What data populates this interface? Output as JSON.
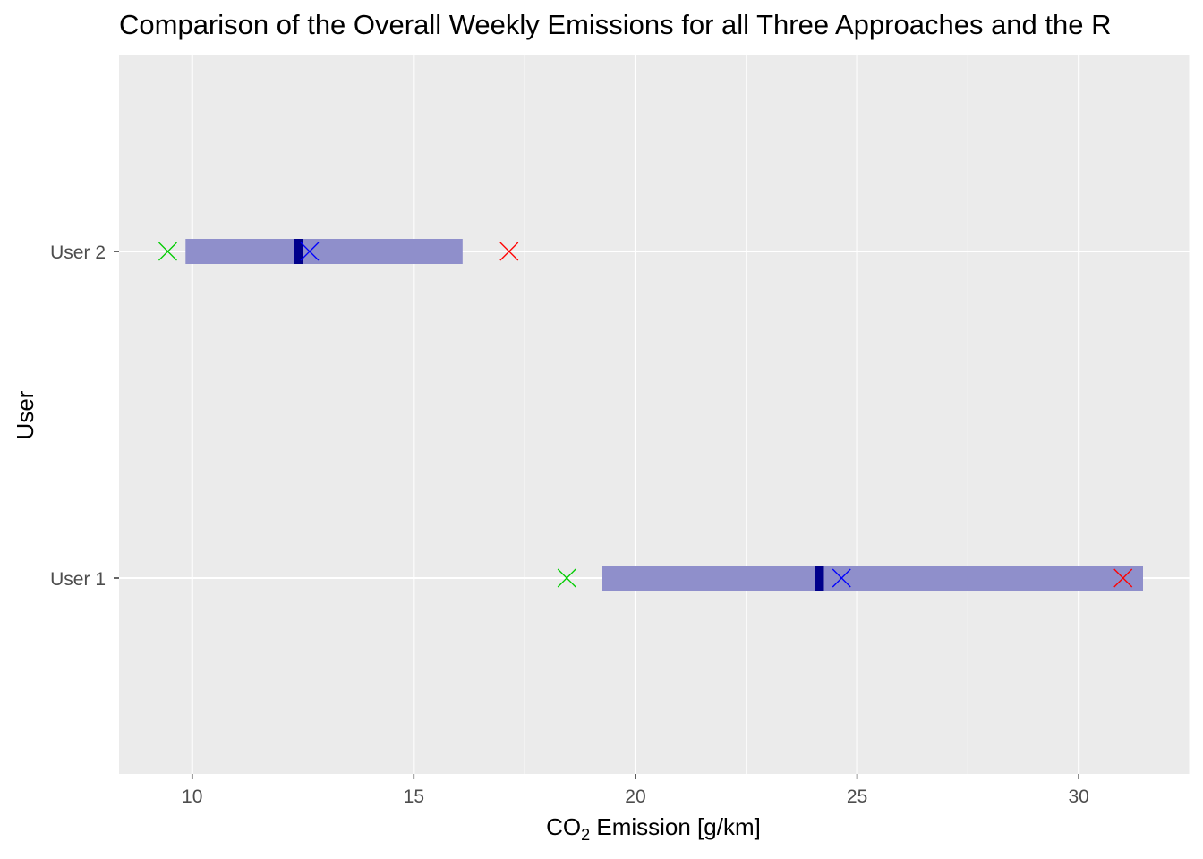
{
  "chart_data": {
    "type": "range",
    "title": "Comparison of the Overall Weekly Emissions for all Three Approaches and the R",
    "xlabel": {
      "prefix": "CO",
      "subscript": "2",
      "suffix": " Emission [g/km]"
    },
    "ylabel": "User",
    "xlim": [
      8.35,
      32.5
    ],
    "x_ticks": [
      10,
      15,
      20,
      25,
      30
    ],
    "x_tick_labels": [
      "10",
      "15",
      "20",
      "25",
      "30"
    ],
    "categories": [
      "User 1",
      "User 2"
    ],
    "grid": true,
    "ranges": [
      {
        "user": "User 1",
        "low": 19.25,
        "high": 31.45,
        "mid": 24.15
      },
      {
        "user": "User 2",
        "low": 9.85,
        "high": 16.1,
        "mid": 12.4
      }
    ],
    "markers": [
      {
        "user": "User 1",
        "x": 18.45,
        "color": "#00cc00"
      },
      {
        "user": "User 1",
        "x": 24.65,
        "color": "#0000ff"
      },
      {
        "user": "User 1",
        "x": 31.0,
        "color": "#ff0000"
      },
      {
        "user": "User 2",
        "x": 9.45,
        "color": "#00cc00"
      },
      {
        "user": "User 2",
        "x": 12.65,
        "color": "#0000ff"
      },
      {
        "user": "User 2",
        "x": 17.15,
        "color": "#ff0000"
      }
    ],
    "colors": {
      "panel": "#ebebeb",
      "grid_major": "#ffffff",
      "range_bar": "#8f8fcb",
      "mid_marker": "#00008b"
    }
  }
}
